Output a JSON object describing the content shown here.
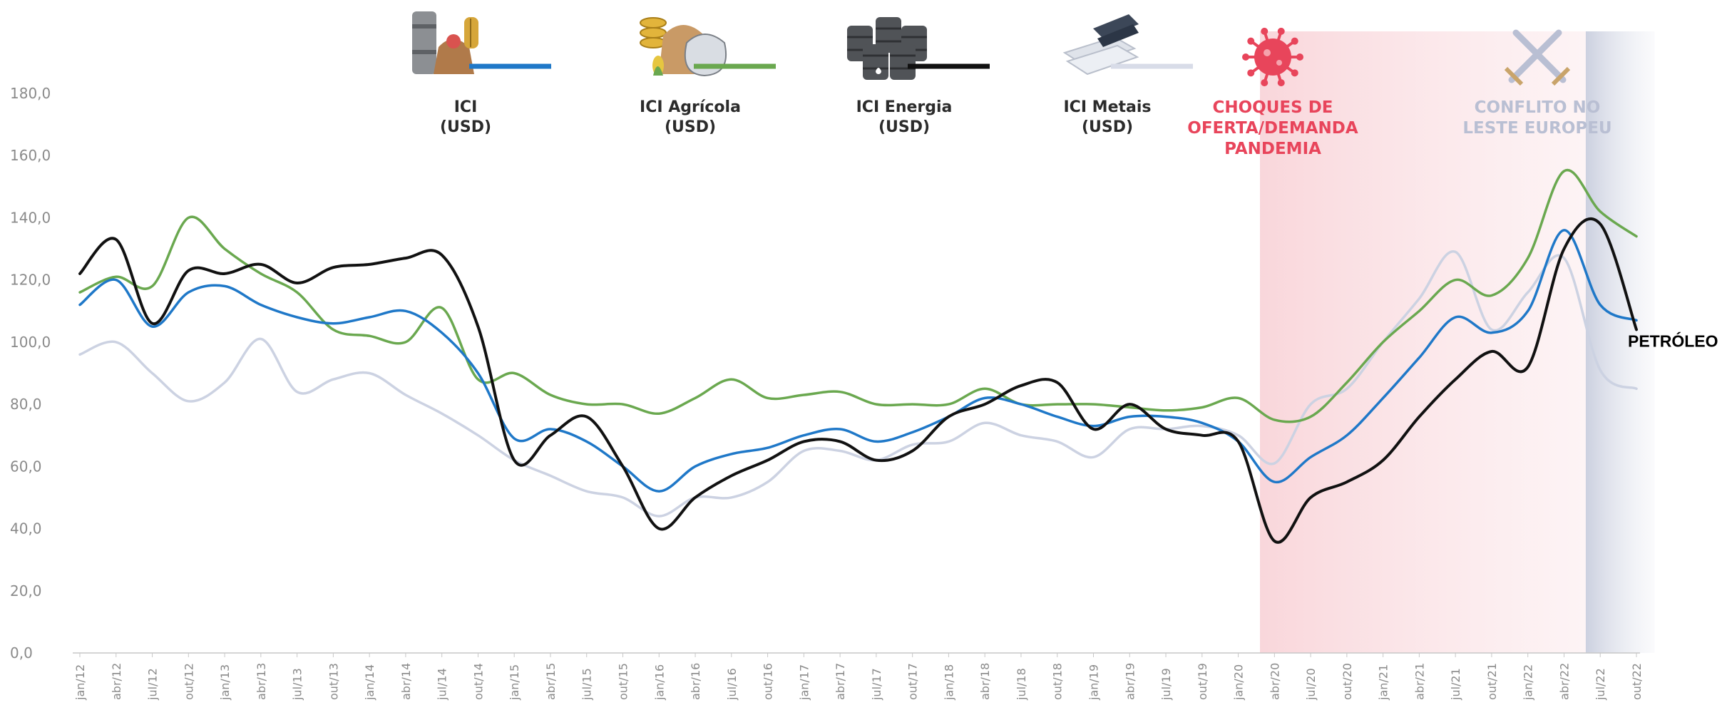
{
  "chart_data": {
    "type": "line",
    "ylim": [
      0,
      180
    ],
    "yticks": [
      "0,0",
      "20,0",
      "40,0",
      "60,0",
      "80,0",
      "100,0",
      "120,0",
      "140,0",
      "160,0",
      "180,0"
    ],
    "yticks_values": [
      0,
      20,
      40,
      60,
      80,
      100,
      120,
      140,
      160,
      180
    ],
    "grid": false,
    "categories": [
      "jan/12",
      "abr/12",
      "jul/12",
      "out/12",
      "jan/13",
      "abr/13",
      "jul/13",
      "out/13",
      "jan/14",
      "abr/14",
      "jul/14",
      "out/14",
      "jan/15",
      "abr/15",
      "jul/15",
      "out/15",
      "jan/16",
      "abr/16",
      "jul/16",
      "out/16",
      "jan/17",
      "abr/17",
      "jul/17",
      "out/17",
      "jan/18",
      "abr/18",
      "jul/18",
      "out/18",
      "jan/19",
      "abr/19",
      "jul/19",
      "out/19",
      "jan/20",
      "abr/20",
      "jul/20",
      "out/20",
      "jan/21",
      "abr/21",
      "jul/21",
      "out/21",
      "jan/22",
      "abr/22",
      "jul/22",
      "out/22"
    ],
    "series": [
      {
        "name": "ICI (USD)",
        "color": "#1f78c8",
        "values": [
          112,
          120,
          105,
          116,
          118,
          112,
          108,
          106,
          108,
          110,
          103,
          90,
          69,
          72,
          68,
          60,
          52,
          60,
          64,
          66,
          70,
          72,
          68,
          71,
          76,
          82,
          80,
          76,
          73,
          76,
          76,
          74,
          68,
          55,
          63,
          70,
          82,
          95,
          108,
          103,
          110,
          136,
          112,
          107
        ]
      },
      {
        "name": "ICI Agrícola (USD)",
        "color": "#6aa84f",
        "values": [
          116,
          121,
          118,
          140,
          130,
          122,
          116,
          104,
          102,
          100,
          111,
          88,
          90,
          83,
          80,
          80,
          77,
          82,
          88,
          82,
          83,
          84,
          80,
          80,
          80,
          85,
          80,
          80,
          80,
          79,
          78,
          79,
          82,
          75,
          76,
          87,
          100,
          110,
          120,
          115,
          127,
          155,
          142,
          134
        ]
      },
      {
        "name": "ICI Energia (USD)",
        "color": "#111111",
        "values": [
          122,
          133,
          106,
          123,
          122,
          125,
          119,
          124,
          125,
          127,
          128,
          105,
          62,
          70,
          76,
          60,
          40,
          50,
          57,
          62,
          68,
          68,
          62,
          65,
          76,
          80,
          86,
          87,
          72,
          80,
          72,
          70,
          68,
          36,
          50,
          55,
          62,
          76,
          88,
          97,
          92,
          130,
          138,
          104
        ]
      },
      {
        "name": "ICI Metais (USD)",
        "color": "#ccd2e2",
        "values": [
          96,
          100,
          90,
          81,
          87,
          101,
          84,
          88,
          90,
          83,
          77,
          70,
          62,
          57,
          52,
          50,
          44,
          50,
          50,
          55,
          65,
          65,
          62,
          67,
          68,
          74,
          70,
          68,
          63,
          72,
          72,
          73,
          70,
          61,
          80,
          85,
          100,
          114,
          129,
          104,
          116,
          127,
          91,
          85
        ]
      }
    ],
    "legend": [
      {
        "label_1": "ICI",
        "label_2": "(USD)",
        "icon": "food-basket-barrels-icon",
        "color": "#1f78c8"
      },
      {
        "label_1": "ICI Agrícola",
        "label_2": "(USD)",
        "icon": "agricultural-commodities-icon",
        "color": "#6aa84f"
      },
      {
        "label_1": "ICI Energia",
        "label_2": "(USD)",
        "icon": "oil-barrels-icon",
        "color": "#111111"
      },
      {
        "label_1": "ICI Metais",
        "label_2": "(USD)",
        "icon": "metal-bars-icon",
        "color": "#d8dce8"
      }
    ],
    "periods": [
      {
        "lines": [
          "CHOQUES DE",
          "OFERTA/DEMANDA",
          "PANDEMIA"
        ],
        "color": "#e8455b",
        "icon": "virus-icon",
        "start_index": 32.6,
        "end_index": 41.6
      },
      {
        "lines": [
          "CONFLITO NO",
          "LESTE EUROPEU"
        ],
        "color": "#b9bfd3",
        "icon": "crossed-swords-icon",
        "start_index": 41.6,
        "end_index": 43.5
      }
    ],
    "end_label": "PETRÓLEO"
  }
}
